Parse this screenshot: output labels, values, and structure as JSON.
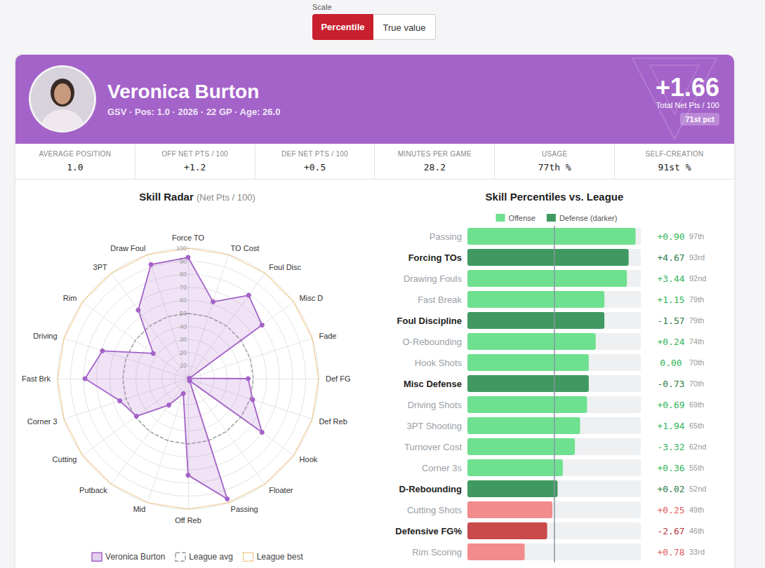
{
  "controls": {
    "label": "Scale",
    "options": [
      "Percentile",
      "True value"
    ],
    "selected": "Percentile"
  },
  "player": {
    "name": "Veronica Burton",
    "details": "GSV · Pos: 1.0 · 2026 · 22 GP · Age: 26.0",
    "total": "+1.66",
    "total_label": "Total Net Pts / 100",
    "total_pct": "71st pct"
  },
  "stats": [
    {
      "label": "AVERAGE POSITION",
      "value": "1.0"
    },
    {
      "label": "OFF NET PTS / 100",
      "value": "+1.2"
    },
    {
      "label": "DEF NET PTS / 100",
      "value": "+0.5"
    },
    {
      "label": "MINUTES PER GAME",
      "value": "28.2"
    },
    {
      "label": "USAGE",
      "value": "77th %"
    },
    {
      "label": "SELF-CREATION",
      "value": "91st %"
    }
  ],
  "chart_data": [
    {
      "type": "radar",
      "title": "Skill Radar",
      "subtitle": "(Net Pts / 100)",
      "categories": [
        "Force TO",
        "Draw Foul",
        "3PT",
        "Rim",
        "Driving",
        "Fast Brk",
        "Corner 3",
        "Cutting",
        "Putback",
        "Mid",
        "Off Reb",
        "Passing",
        "Floater",
        "Hook",
        "Def Reb",
        "Def FG",
        "Fade",
        "Misc D",
        "Foul Disc",
        "TO Cost"
      ],
      "series": [
        {
          "name": "Veronica Burton",
          "color": "#a463c9",
          "line_style": "solid",
          "marker": "circle",
          "values": [
            93,
            92,
            65,
            33,
            69,
            79,
            55,
            49,
            25,
            12,
            74,
            97,
            2,
            70,
            52,
            46,
            1,
            70,
            79,
            62
          ]
        },
        {
          "name": "League avg",
          "color": "#9a9a9a",
          "line_style": "dashed",
          "values": [
            50,
            50,
            50,
            50,
            50,
            50,
            50,
            50,
            50,
            50,
            50,
            50,
            50,
            50,
            50,
            50,
            50,
            50,
            50,
            50
          ]
        },
        {
          "name": "League best",
          "color": "#e8a33d",
          "line_style": "dotted",
          "values": [
            100,
            100,
            100,
            100,
            100,
            100,
            100,
            100,
            100,
            100,
            100,
            100,
            100,
            100,
            100,
            100,
            100,
            100,
            100,
            100
          ]
        }
      ],
      "ylim": [
        0,
        100
      ],
      "yticks": [
        10,
        20,
        30,
        40,
        50,
        60,
        70,
        80,
        90,
        100
      ],
      "grid": true,
      "legend": "bottom"
    },
    {
      "type": "bar",
      "orientation": "horizontal",
      "title": "Skill Percentiles vs. League",
      "categories": [
        "Passing",
        "Forcing TOs",
        "Drawing Fouls",
        "Fast Break",
        "Foul Discipline",
        "O-Rebounding",
        "Hook Shots",
        "Misc Defense",
        "Driving Shots",
        "3PT Shooting",
        "Turnover Cost",
        "Corner 3s",
        "D-Rebounding",
        "Cutting Shots",
        "Defensive FG%",
        "Rim Scoring"
      ],
      "series": [
        {
          "name": "Offense",
          "color": "#6ee08f",
          "values": [
            97,
            null,
            92,
            79,
            null,
            74,
            70,
            null,
            69,
            65,
            62,
            55,
            null,
            49,
            null,
            33
          ],
          "colors": [
            "#6ee08f",
            null,
            "#6ee08f",
            "#6ee08f",
            null,
            "#6ee08f",
            "#6ee08f",
            null,
            "#6ee08f",
            "#6ee08f",
            "#6ee08f",
            "#6ee08f",
            null,
            "#f28b8b",
            null,
            "#f28b8b"
          ]
        },
        {
          "name": "Defense (darker)",
          "color": "#3f9960",
          "values": [
            null,
            93,
            null,
            null,
            79,
            null,
            null,
            70,
            null,
            null,
            null,
            null,
            52,
            null,
            46,
            null
          ],
          "colors": [
            null,
            "#3f9960",
            null,
            null,
            "#3f9960",
            null,
            null,
            "#3f9960",
            null,
            null,
            null,
            null,
            "#3f9960",
            null,
            "#c94a4a",
            null
          ]
        }
      ],
      "value_labels": [
        "97th",
        "93rd",
        "92nd",
        "79th",
        "79th",
        "74th",
        "70th",
        "70th",
        "69th",
        "65th",
        "62nd",
        "55th",
        "52nd",
        "49th",
        "46th",
        "33rd"
      ],
      "net_pts": [
        0.9,
        4.67,
        3.44,
        1.15,
        -1.57,
        0.24,
        0.0,
        -0.73,
        0.69,
        1.94,
        -3.32,
        0.36,
        0.02,
        0.25,
        -2.67,
        0.78
      ],
      "net_pts_labels": [
        "+0.90",
        "+4.67",
        "+3.44",
        "+1.15",
        "-1.57",
        "+0.24",
        "0.00",
        "-0.73",
        "+0.69",
        "+1.94",
        "-3.32",
        "+0.36",
        "+0.02",
        "+0.25",
        "-2.67",
        "+0.78"
      ],
      "league_avg": 50,
      "xlim": [
        0,
        100
      ],
      "tick_labels": false,
      "legend": "top"
    }
  ]
}
